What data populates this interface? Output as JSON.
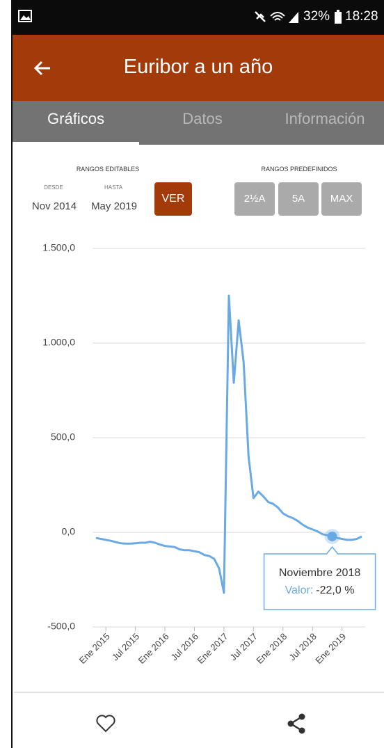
{
  "status_bar": {
    "battery": "32%",
    "time": "18:28"
  },
  "header": {
    "title": "Euribor a un año"
  },
  "tabs": [
    "Gráficos",
    "Datos",
    "Información"
  ],
  "ranges": {
    "editable": {
      "title": "RANGOS EDITABLES",
      "from_label": "DESDE",
      "to_label": "HASTA",
      "from": "Nov 2014",
      "to": "May 2019",
      "button": "VER"
    },
    "predefined": {
      "title": "RANGOS PREDEFINIDOS",
      "buttons": [
        "2½A",
        "5A",
        "MAX"
      ]
    }
  },
  "chart_data": {
    "type": "line",
    "categories": [
      null,
      null,
      "Ene 2015",
      null,
      null,
      null,
      null,
      null,
      "Jul 2015",
      null,
      null,
      null,
      null,
      null,
      "Ene 2016",
      null,
      null,
      null,
      null,
      null,
      "Jul 2016",
      null,
      null,
      null,
      null,
      null,
      "Ene 2017",
      null,
      null,
      null,
      null,
      null,
      "Jul 2017",
      null,
      null,
      null,
      null,
      null,
      "Ene 2018",
      null,
      null,
      null,
      null,
      null,
      "Jul 2018",
      null,
      null,
      null,
      null,
      null,
      "Ene 2019",
      null,
      null,
      null,
      null
    ],
    "series": [
      {
        "color": "#6aaae4",
        "values": [
          -30,
          -35,
          -40,
          -45,
          -52,
          -58,
          -60,
          -60,
          -58,
          -55,
          -55,
          -50,
          -55,
          -65,
          -72,
          -75,
          -78,
          -90,
          -95,
          -95,
          -100,
          -105,
          -120,
          -125,
          -140,
          -190,
          -320,
          1250,
          790,
          1120,
          900,
          400,
          180,
          215,
          190,
          160,
          150,
          130,
          100,
          85,
          75,
          60,
          40,
          25,
          15,
          5,
          -10,
          -15,
          -22,
          -30,
          -35,
          -40,
          -40,
          -35,
          -22
        ],
        "value_labels": [
          null,
          null,
          null,
          null,
          null,
          null,
          null,
          null,
          null,
          null,
          null,
          null,
          null,
          null,
          null,
          null,
          null,
          null,
          null,
          null,
          null,
          null,
          null,
          null,
          null,
          null,
          null,
          null,
          null,
          null,
          null,
          null,
          null,
          null,
          null,
          null,
          null,
          null,
          null,
          null,
          null,
          null,
          null,
          null,
          null,
          null,
          null,
          null,
          "-22,0 %",
          null,
          null,
          null,
          null,
          null,
          null
        ]
      }
    ],
    "ylim": [
      -500,
      1500
    ],
    "yticks": [
      {
        "value": -500,
        "label": "-500,0"
      },
      {
        "value": 0,
        "label": "0,0"
      },
      {
        "value": 500,
        "label": "500,0"
      },
      {
        "value": 1000,
        "label": "1.000,0"
      },
      {
        "value": 1500,
        "label": "1.500,0"
      }
    ],
    "grid": true,
    "tooltip": {
      "title": "Noviembre 2018",
      "label": "Valor:"
    }
  }
}
